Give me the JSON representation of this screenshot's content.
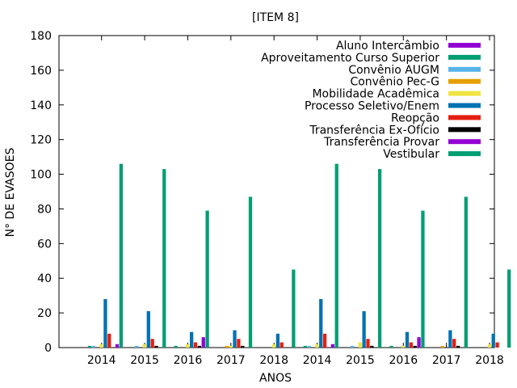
{
  "chart_data": {
    "type": "bar",
    "title": "[ITEM 8]",
    "xlabel": "ANOS",
    "ylabel": "N° DE EVASOES",
    "ylim": [
      0,
      180
    ],
    "yticks": [
      0,
      20,
      40,
      60,
      80,
      100,
      120,
      140,
      160,
      180
    ],
    "categories": [
      "2014",
      "2015",
      "2016",
      "2017",
      "2018",
      "2014",
      "2015",
      "2016",
      "2017",
      "2018"
    ],
    "legend_position": "top-right",
    "grid": false,
    "series": [
      {
        "name": "Aluno Intercâmbio",
        "color": "#9400d3",
        "values": [
          0,
          0,
          0,
          0,
          0,
          0,
          0,
          0,
          0,
          0
        ]
      },
      {
        "name": "Aproveitamento Curso Superior",
        "color": "#009e73",
        "values": [
          1,
          0,
          1,
          0,
          0,
          1,
          0,
          1,
          0,
          0
        ]
      },
      {
        "name": "Convênio AUGM",
        "color": "#56b4e9",
        "values": [
          1,
          1,
          0,
          0,
          0,
          1,
          1,
          0,
          0,
          0
        ]
      },
      {
        "name": "Convênio Pec-G",
        "color": "#e69f00",
        "values": [
          0,
          0,
          0,
          1,
          0,
          0,
          0,
          0,
          1,
          0
        ]
      },
      {
        "name": "Mobilidade Acadêmica",
        "color": "#f0e442",
        "values": [
          2,
          2,
          2,
          1,
          2,
          2,
          3,
          1,
          0,
          2
        ]
      },
      {
        "name": "Processo Seletivo/Enem",
        "color": "#0072b2",
        "values": [
          28,
          21,
          9,
          10,
          8,
          28,
          21,
          9,
          10,
          8
        ]
      },
      {
        "name": "Reopção",
        "color": "#e51e10",
        "values": [
          8,
          5,
          3,
          5,
          3,
          8,
          5,
          3,
          5,
          3
        ]
      },
      {
        "name": "Transferência Ex-Ofício",
        "color": "#000000",
        "values": [
          0,
          1,
          1,
          1,
          0,
          0,
          1,
          1,
          1,
          0
        ]
      },
      {
        "name": "Transferência Provar",
        "color": "#9400d3",
        "values": [
          2,
          0,
          6,
          0,
          0,
          2,
          0,
          6,
          0,
          0
        ]
      },
      {
        "name": "Vestibular",
        "color": "#009e73",
        "values": [
          106,
          103,
          79,
          87,
          45,
          106,
          103,
          79,
          87,
          45
        ]
      }
    ]
  }
}
